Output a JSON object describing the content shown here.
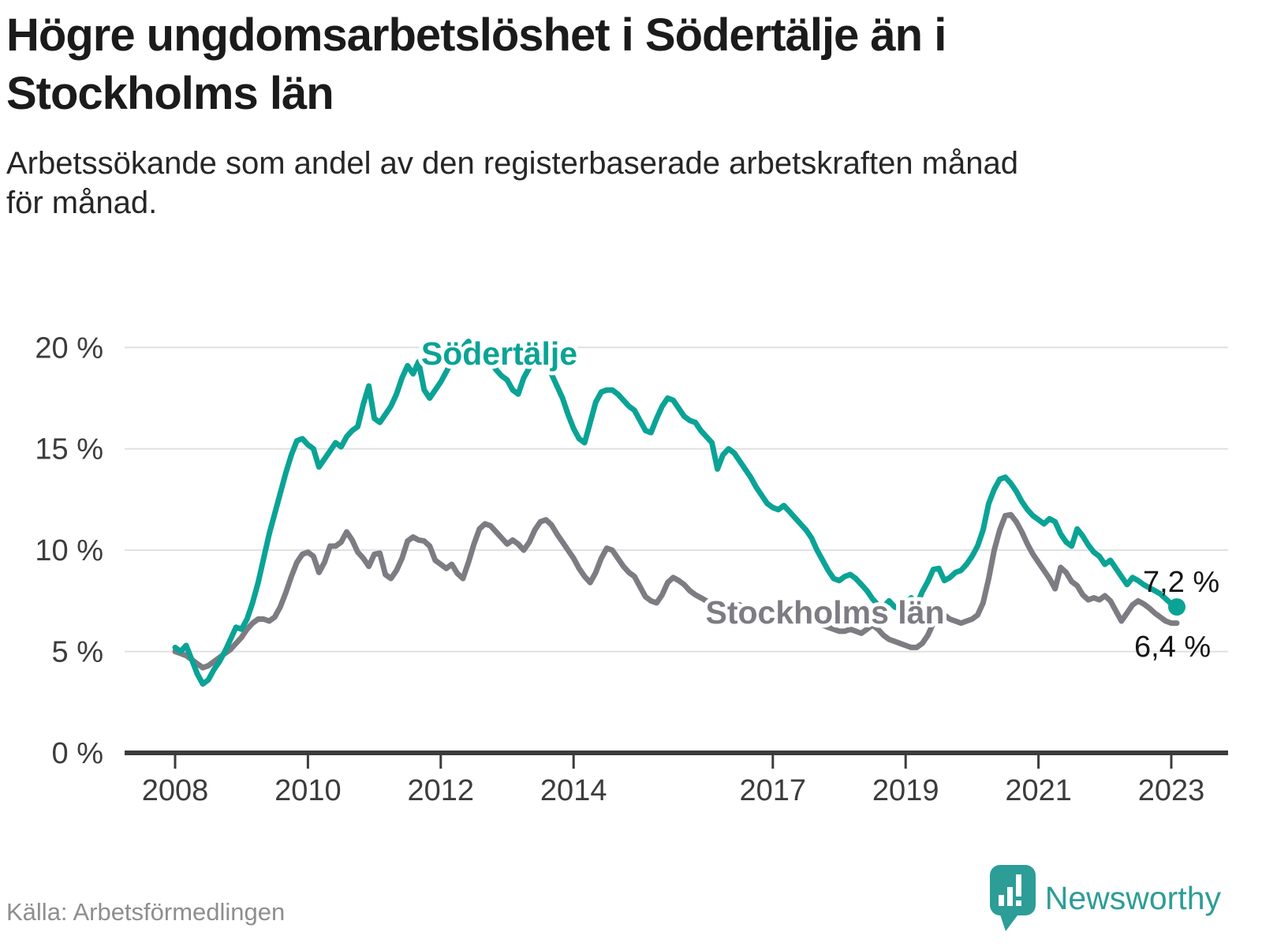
{
  "header": {
    "title": "Högre ungdomsarbetslöshet i Södertälje än i Stockholms län",
    "subtitle": "Arbetssökande som andel av den registerbaserade arbetskraften månad för månad."
  },
  "footer": {
    "source": "Källa: Arbetsförmedlingen",
    "brand": "Newsworthy"
  },
  "colors": {
    "sodertalje": "#0aa396",
    "stockholm": "#7c7c82",
    "grid": "#e0e0e0",
    "axis": "#3c3c3c",
    "tick_text": "#3c3c3c",
    "end_label_text": "#161616",
    "brand_teal": "#2d9d97"
  },
  "chart_data": {
    "type": "line",
    "unit": "%",
    "start": {
      "year": 2008,
      "month": 1
    },
    "end": {
      "year": 2023,
      "month": 2
    },
    "x_tick_years": [
      2008,
      2010,
      2012,
      2014,
      2017,
      2019,
      2021,
      2023
    ],
    "y_ticks": [
      0,
      5,
      10,
      15,
      20
    ],
    "y_tick_suffix": " %",
    "ylim": [
      0,
      21
    ],
    "grid": true,
    "series": [
      {
        "name": "Södertälje",
        "color": "#0aa396",
        "end_label": "7,2 %",
        "end_value": 7.2,
        "values": [
          5.2,
          5.0,
          5.3,
          4.6,
          3.9,
          3.4,
          3.6,
          4.1,
          4.5,
          5.0,
          5.6,
          6.2,
          6.1,
          6.6,
          7.4,
          8.4,
          9.6,
          10.8,
          11.8,
          12.8,
          13.8,
          14.7,
          15.4,
          15.5,
          15.2,
          15.0,
          14.1,
          14.5,
          14.9,
          15.3,
          15.1,
          15.6,
          15.9,
          16.1,
          17.2,
          18.1,
          16.5,
          16.3,
          16.7,
          17.1,
          17.7,
          18.5,
          19.1,
          18.7,
          19.3,
          17.9,
          17.5,
          17.9,
          18.3,
          18.8,
          19.3,
          19.7,
          20.0,
          20.3,
          19.9,
          19.5,
          19.8,
          19.3,
          18.9,
          18.6,
          18.4,
          17.9,
          17.7,
          18.5,
          19.0,
          19.4,
          19.5,
          19.2,
          18.7,
          18.1,
          17.5,
          16.7,
          16.0,
          15.5,
          15.3,
          16.3,
          17.3,
          17.8,
          17.9,
          17.9,
          17.7,
          17.4,
          17.1,
          16.9,
          16.4,
          15.9,
          15.8,
          16.5,
          17.1,
          17.5,
          17.4,
          17.0,
          16.6,
          16.4,
          16.3,
          15.9,
          15.6,
          15.3,
          14.0,
          14.7,
          15.0,
          14.8,
          14.4,
          14.0,
          13.6,
          13.1,
          12.7,
          12.3,
          12.1,
          12.0,
          12.2,
          11.9,
          11.6,
          11.3,
          11.0,
          10.6,
          10.0,
          9.5,
          9.0,
          8.6,
          8.5,
          8.7,
          8.8,
          8.6,
          8.3,
          8.0,
          7.6,
          7.3,
          7.2,
          7.5,
          7.2,
          7.1,
          7.2,
          7.65,
          7.3,
          7.95,
          8.45,
          9.05,
          9.1,
          8.5,
          8.65,
          8.9,
          9.0,
          9.3,
          9.7,
          10.2,
          11.0,
          12.3,
          13.0,
          13.5,
          13.6,
          13.3,
          12.9,
          12.4,
          12.0,
          11.7,
          11.5,
          11.3,
          11.55,
          11.4,
          10.8,
          10.4,
          10.2,
          11.05,
          10.7,
          10.25,
          9.9,
          9.7,
          9.3,
          9.5,
          9.1,
          8.7,
          8.3,
          8.65,
          8.5,
          8.3,
          8.15,
          8.0,
          7.85,
          7.6,
          7.35,
          7.2
        ]
      },
      {
        "name": "Stockholms län",
        "color": "#7c7c82",
        "end_label": "6,4 %",
        "end_value": 6.4,
        "values": [
          5.0,
          4.9,
          4.8,
          4.6,
          4.4,
          4.2,
          4.3,
          4.5,
          4.7,
          4.9,
          5.1,
          5.4,
          5.7,
          6.1,
          6.4,
          6.6,
          6.6,
          6.5,
          6.7,
          7.2,
          7.9,
          8.7,
          9.4,
          9.8,
          9.9,
          9.7,
          8.9,
          9.4,
          10.2,
          10.2,
          10.4,
          10.9,
          10.5,
          9.9,
          9.6,
          9.2,
          9.8,
          9.85,
          8.8,
          8.6,
          9.0,
          9.6,
          10.45,
          10.65,
          10.5,
          10.45,
          10.2,
          9.5,
          9.3,
          9.1,
          9.3,
          8.85,
          8.6,
          9.4,
          10.3,
          11.05,
          11.3,
          11.2,
          10.9,
          10.6,
          10.3,
          10.5,
          10.3,
          10.0,
          10.4,
          11.0,
          11.4,
          11.5,
          11.25,
          10.8,
          10.4,
          10.0,
          9.6,
          9.1,
          8.7,
          8.4,
          8.9,
          9.6,
          10.1,
          10.0,
          9.6,
          9.2,
          8.9,
          8.7,
          8.2,
          7.7,
          7.5,
          7.4,
          7.8,
          8.4,
          8.65,
          8.5,
          8.3,
          8.0,
          7.8,
          7.65,
          7.5,
          7.4,
          7.3,
          7.2,
          7.2,
          7.3,
          7.3,
          7.1,
          6.85,
          6.8,
          6.8,
          6.75,
          6.7,
          6.7,
          6.6,
          6.6,
          6.7,
          7.0,
          7.0,
          6.8,
          6.5,
          6.3,
          6.2,
          6.1,
          6.0,
          6.0,
          6.1,
          6.0,
          5.9,
          6.1,
          6.3,
          6.1,
          5.8,
          5.6,
          5.5,
          5.4,
          5.3,
          5.2,
          5.2,
          5.4,
          5.8,
          6.4,
          6.9,
          6.8,
          6.6,
          6.5,
          6.4,
          6.5,
          6.6,
          6.8,
          7.4,
          8.6,
          10.0,
          11.0,
          11.7,
          11.75,
          11.4,
          10.9,
          10.3,
          9.8,
          9.4,
          9.0,
          8.6,
          8.1,
          9.15,
          8.9,
          8.45,
          8.25,
          7.8,
          7.55,
          7.65,
          7.55,
          7.75,
          7.5,
          7.0,
          6.5,
          6.9,
          7.3,
          7.5,
          7.35,
          7.15,
          6.9,
          6.7,
          6.5,
          6.4,
          6.4
        ]
      }
    ]
  }
}
